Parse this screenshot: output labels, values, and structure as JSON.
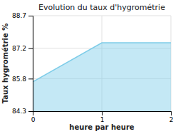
{
  "chart_data": {
    "type": "area",
    "title": "Evolution du taux d'hygrométrie",
    "xlabel": "heure par heure",
    "ylabel": "Taux hygrométrie %",
    "x": [
      0,
      1,
      2
    ],
    "values": [
      85.65,
      87.45,
      87.45
    ],
    "color": "#7dcce8",
    "xlim": [
      0,
      2
    ],
    "ylim": [
      84.3,
      88.7
    ],
    "xticks": [
      0,
      1,
      2
    ],
    "yticks": [
      84.3,
      85.8,
      87.2,
      88.7
    ],
    "grid": true
  }
}
